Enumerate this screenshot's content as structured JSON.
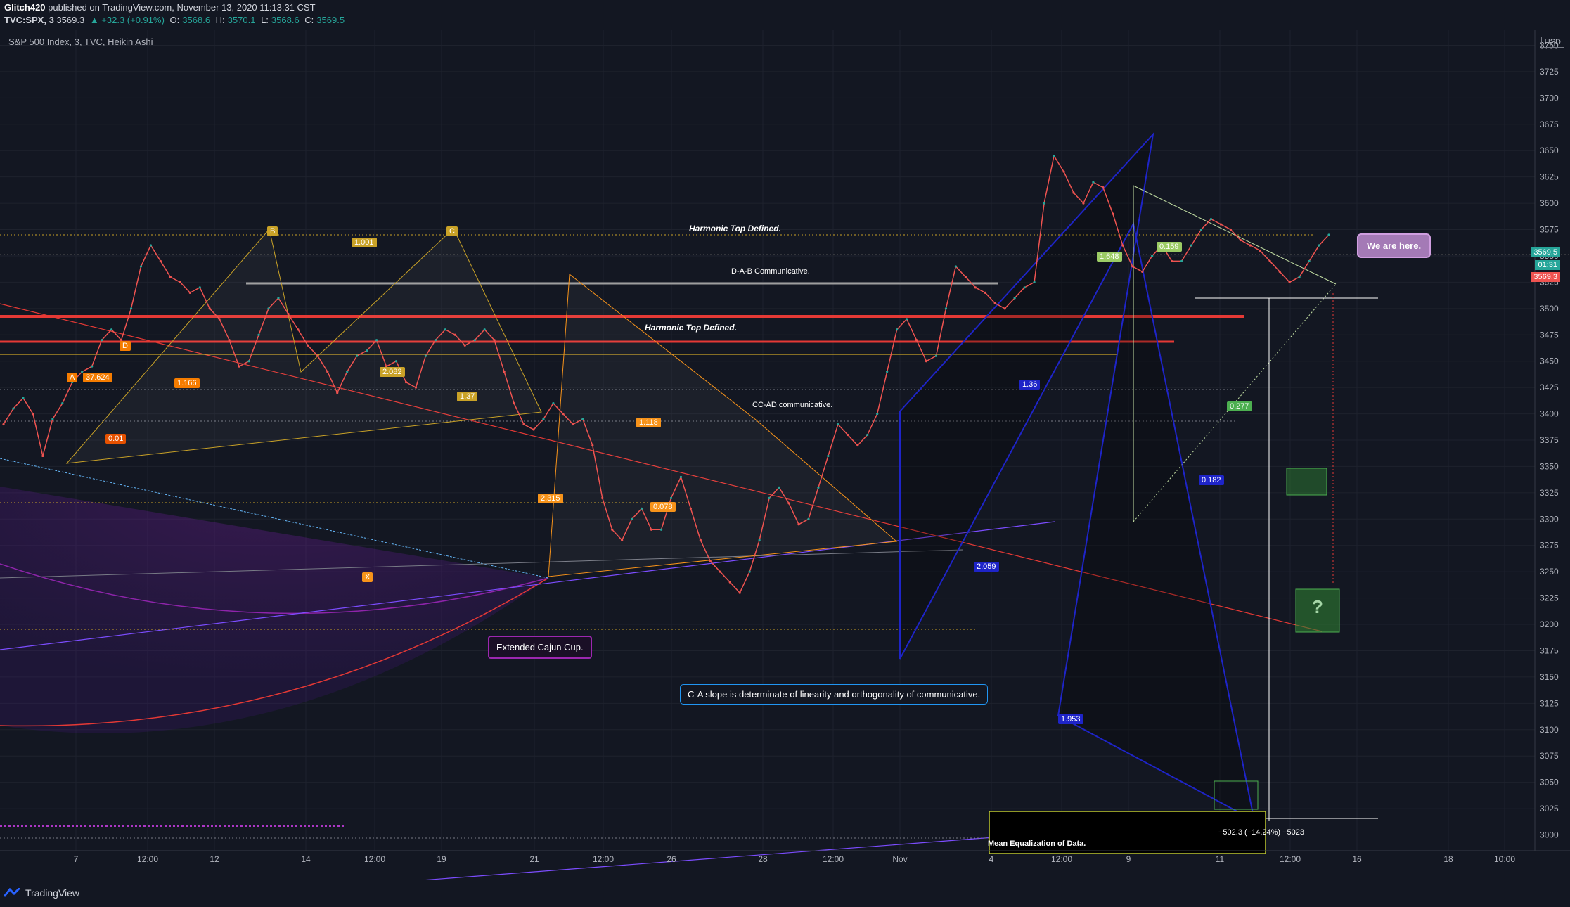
{
  "header": {
    "author": "Glitch420",
    "published": "published on TradingView.com, November 13, 2020 11:13:31 CST",
    "symbol_line": "TVC:SPX, 3",
    "last": "3569.3",
    "change": "▲ +32.3 (+0.91%)",
    "o_label": "O:",
    "o": "3568.6",
    "h_label": "H:",
    "h": "3570.1",
    "l_label": "L:",
    "l": "3568.6",
    "c_label": "C:",
    "c": "3569.5"
  },
  "chart_title": "S&P 500 Index, 3, TVC, Heikin Ashi",
  "currency": "USD",
  "price_tags": {
    "current": "3569.5",
    "countdown": "01:31",
    "alt": "3569.3"
  },
  "annotations": {
    "harmonic_top_1": "Harmonic Top Defined.",
    "harmonic_top_2": "Harmonic Top Defined.",
    "dab": "D-A-B Communicative.",
    "ccad": "CC-AD communicative.",
    "cajun": "Extended Cajun Cup.",
    "ca_slope": "C-A slope is determinate of linearity and orthogonality of communicative.",
    "we_here": "We are here.",
    "mean_eq": "Mean Equalization of Data.",
    "measure": "−502.3 (−14.24%) −5023",
    "question": "?"
  },
  "pattern_labels": [
    "A",
    "B",
    "C",
    "D",
    "X",
    "0.01",
    "37.624",
    "1.166",
    "1.001",
    "2.082",
    "1.37",
    "1.118",
    "2.315",
    "0.078",
    "1.953",
    "2.059",
    "0.182",
    "0.277",
    "1.648",
    "0.159",
    "1.36"
  ],
  "footer": {
    "brand": "TradingView"
  },
  "colors": {
    "background": "#131722",
    "up": "#26a69a",
    "down": "#ef5350",
    "purple": "#9c27b0",
    "blue": "#1e24c8",
    "gold": "#c9a227",
    "orange": "#f7931a",
    "green": "#2e7d32"
  },
  "chart_data": {
    "type": "line",
    "title": "S&P 500 Index, 3, TVC, Heikin Ashi",
    "xlabel": "",
    "ylabel": "",
    "x_ticks": [
      "7",
      "12:00",
      "12",
      "14",
      "12:00",
      "19",
      "21",
      "12:00",
      "26",
      "28",
      "12:00",
      "Nov",
      "4",
      "12:00",
      "9",
      "11",
      "12:00",
      "16",
      "18",
      "10:00"
    ],
    "y_ticks": [
      3750,
      3725,
      3700,
      3675,
      3650,
      3625,
      3600,
      3575,
      3550,
      3525,
      3500,
      3475,
      3450,
      3425,
      3400,
      3375,
      3350,
      3325,
      3300,
      3275,
      3250,
      3225,
      3200,
      3175,
      3150,
      3125,
      3100,
      3075,
      3050,
      3025,
      3000
    ],
    "ylim": [
      2985,
      3765
    ],
    "grid": true,
    "series": [
      {
        "values": [
          3390,
          3405,
          3415,
          3400,
          3360,
          3395,
          3410,
          3430,
          3440,
          3445,
          3470,
          3480,
          3470,
          3500,
          3540,
          3560,
          3545,
          3530,
          3525,
          3515,
          3520,
          3500,
          3490,
          3470,
          3445,
          3450,
          3475,
          3500,
          3510,
          3495,
          3480,
          3465,
          3455,
          3440,
          3420,
          3440,
          3455,
          3460,
          3470,
          3445,
          3450,
          3430,
          3425,
          3455,
          3470,
          3480,
          3475,
          3465,
          3470,
          3480,
          3470,
          3440,
          3410,
          3390,
          3385,
          3395,
          3410,
          3400,
          3390,
          3395,
          3370,
          3320,
          3290,
          3280,
          3300,
          3310,
          3290,
          3290,
          3320,
          3340,
          3310,
          3280,
          3260,
          3250,
          3240,
          3230,
          3250,
          3280,
          3320,
          3330,
          3315,
          3295,
          3300,
          3330,
          3360,
          3390,
          3380,
          3370,
          3380,
          3400,
          3440,
          3480,
          3490,
          3470,
          3450,
          3455,
          3500,
          3540,
          3530,
          3520,
          3515,
          3505,
          3500,
          3510,
          3520,
          3525,
          3600,
          3645,
          3630,
          3610,
          3600,
          3620,
          3615,
          3590,
          3560,
          3540,
          3535,
          3550,
          3560,
          3545,
          3545,
          3560,
          3575,
          3585,
          3580,
          3575,
          3565,
          3560,
          3555,
          3545,
          3535,
          3525,
          3530,
          3545,
          3560,
          3570
        ]
      }
    ]
  }
}
